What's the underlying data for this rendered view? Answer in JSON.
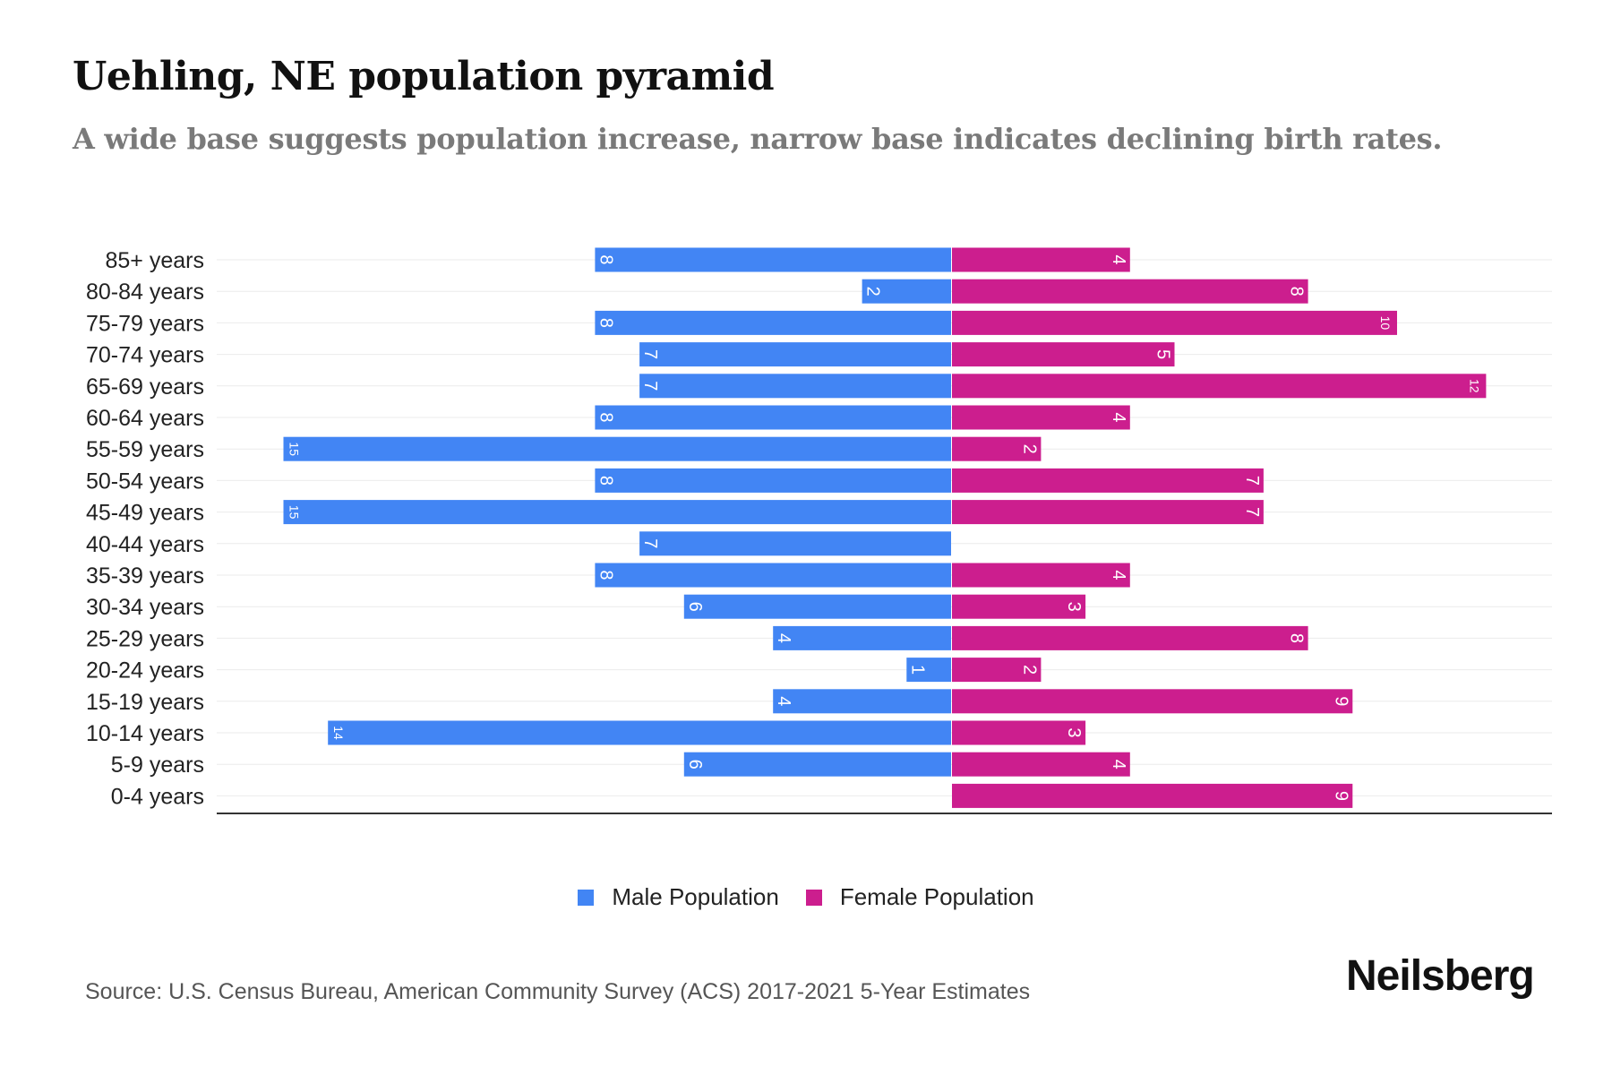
{
  "header": {
    "title": "Uehling, NE population pyramid",
    "subtitle": "A wide base suggests population increase, narrow base indicates declining birth rates."
  },
  "footer": {
    "source": "Source: U.S. Census Bureau, American Community Survey (ACS) 2017-2021 5-Year Estimates",
    "brand": "Neilsberg"
  },
  "colors": {
    "male": "#4285F4",
    "female": "#CC1E8E"
  },
  "chart_data": {
    "type": "bar",
    "orientation": "horizontal-diverging",
    "title": "Uehling, NE population pyramid",
    "subtitle": "A wide base suggests population increase, narrow base indicates declining birth rates.",
    "xlabel": "",
    "ylabel": "",
    "categories": [
      "85+ years",
      "80-84 years",
      "75-79 years",
      "70-74 years",
      "65-69 years",
      "60-64 years",
      "55-59 years",
      "50-54 years",
      "45-49 years",
      "40-44 years",
      "35-39 years",
      "30-34 years",
      "25-29 years",
      "20-24 years",
      "15-19 years",
      "10-14 years",
      "5-9 years",
      "0-4 years"
    ],
    "series": [
      {
        "name": "Male Population",
        "values": [
          8,
          2,
          8,
          7,
          7,
          8,
          15,
          8,
          15,
          7,
          8,
          6,
          4,
          1,
          4,
          14,
          6,
          0
        ]
      },
      {
        "name": "Female Population",
        "values": [
          4,
          8,
          10,
          5,
          12,
          4,
          2,
          7,
          7,
          0,
          4,
          3,
          8,
          2,
          9,
          3,
          4,
          9
        ]
      }
    ],
    "xlim": [
      -15,
      15
    ],
    "grid": true,
    "legend": [
      "Male Population",
      "Female Population"
    ],
    "legend_position": "bottom-center"
  }
}
